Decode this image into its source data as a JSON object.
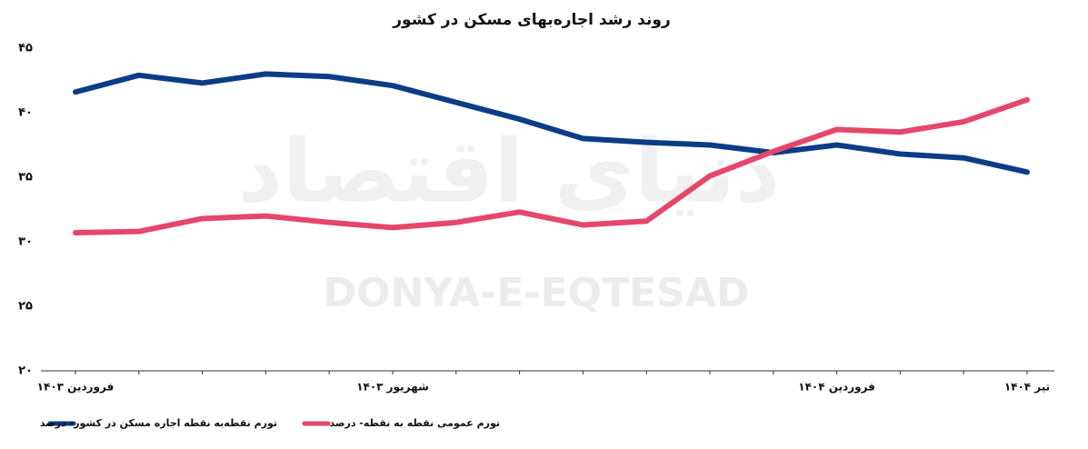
{
  "chart_data": {
    "type": "line",
    "title": "روند رشد اجاره‌بهای مسکن در کشور",
    "watermark": "DONYA-E-EQTESAD",
    "watermark_fa": "دنیای اقتصاد",
    "categories": [
      "فروردین ۱۴۰۳",
      null,
      null,
      null,
      null,
      "شهریور ۱۴۰۳",
      null,
      null,
      null,
      null,
      null,
      null,
      "فروردین ۱۴۰۴",
      null,
      null,
      "تیر ۱۴۰۴"
    ],
    "series": [
      {
        "name": "تورم نقطه‌به نقطه اجاره مسکن در کشور- درصد",
        "color": "#0b3d86",
        "values": [
          41.6,
          42.9,
          42.3,
          43.0,
          42.8,
          42.1,
          40.8,
          39.5,
          38.0,
          37.7,
          37.5,
          36.9,
          37.5,
          36.8,
          36.5,
          35.4
        ]
      },
      {
        "name": "تورم عمومی نقطه به نقطه- درصد",
        "color": "#e5476a",
        "values": [
          30.7,
          30.8,
          31.8,
          32.0,
          31.5,
          31.1,
          31.5,
          32.3,
          31.3,
          31.6,
          35.1,
          37.0,
          38.7,
          38.5,
          39.3,
          41.0
        ]
      }
    ],
    "ylim": [
      20,
      45
    ],
    "yticks": [
      {
        "value": 20,
        "label": "۲۰"
      },
      {
        "value": 25,
        "label": "۲۵"
      },
      {
        "value": 30,
        "label": "۳۰"
      },
      {
        "value": 35,
        "label": "۳۵"
      },
      {
        "value": 40,
        "label": "۴۰"
      },
      {
        "value": 45,
        "label": "۴۵"
      }
    ],
    "grid": false
  }
}
